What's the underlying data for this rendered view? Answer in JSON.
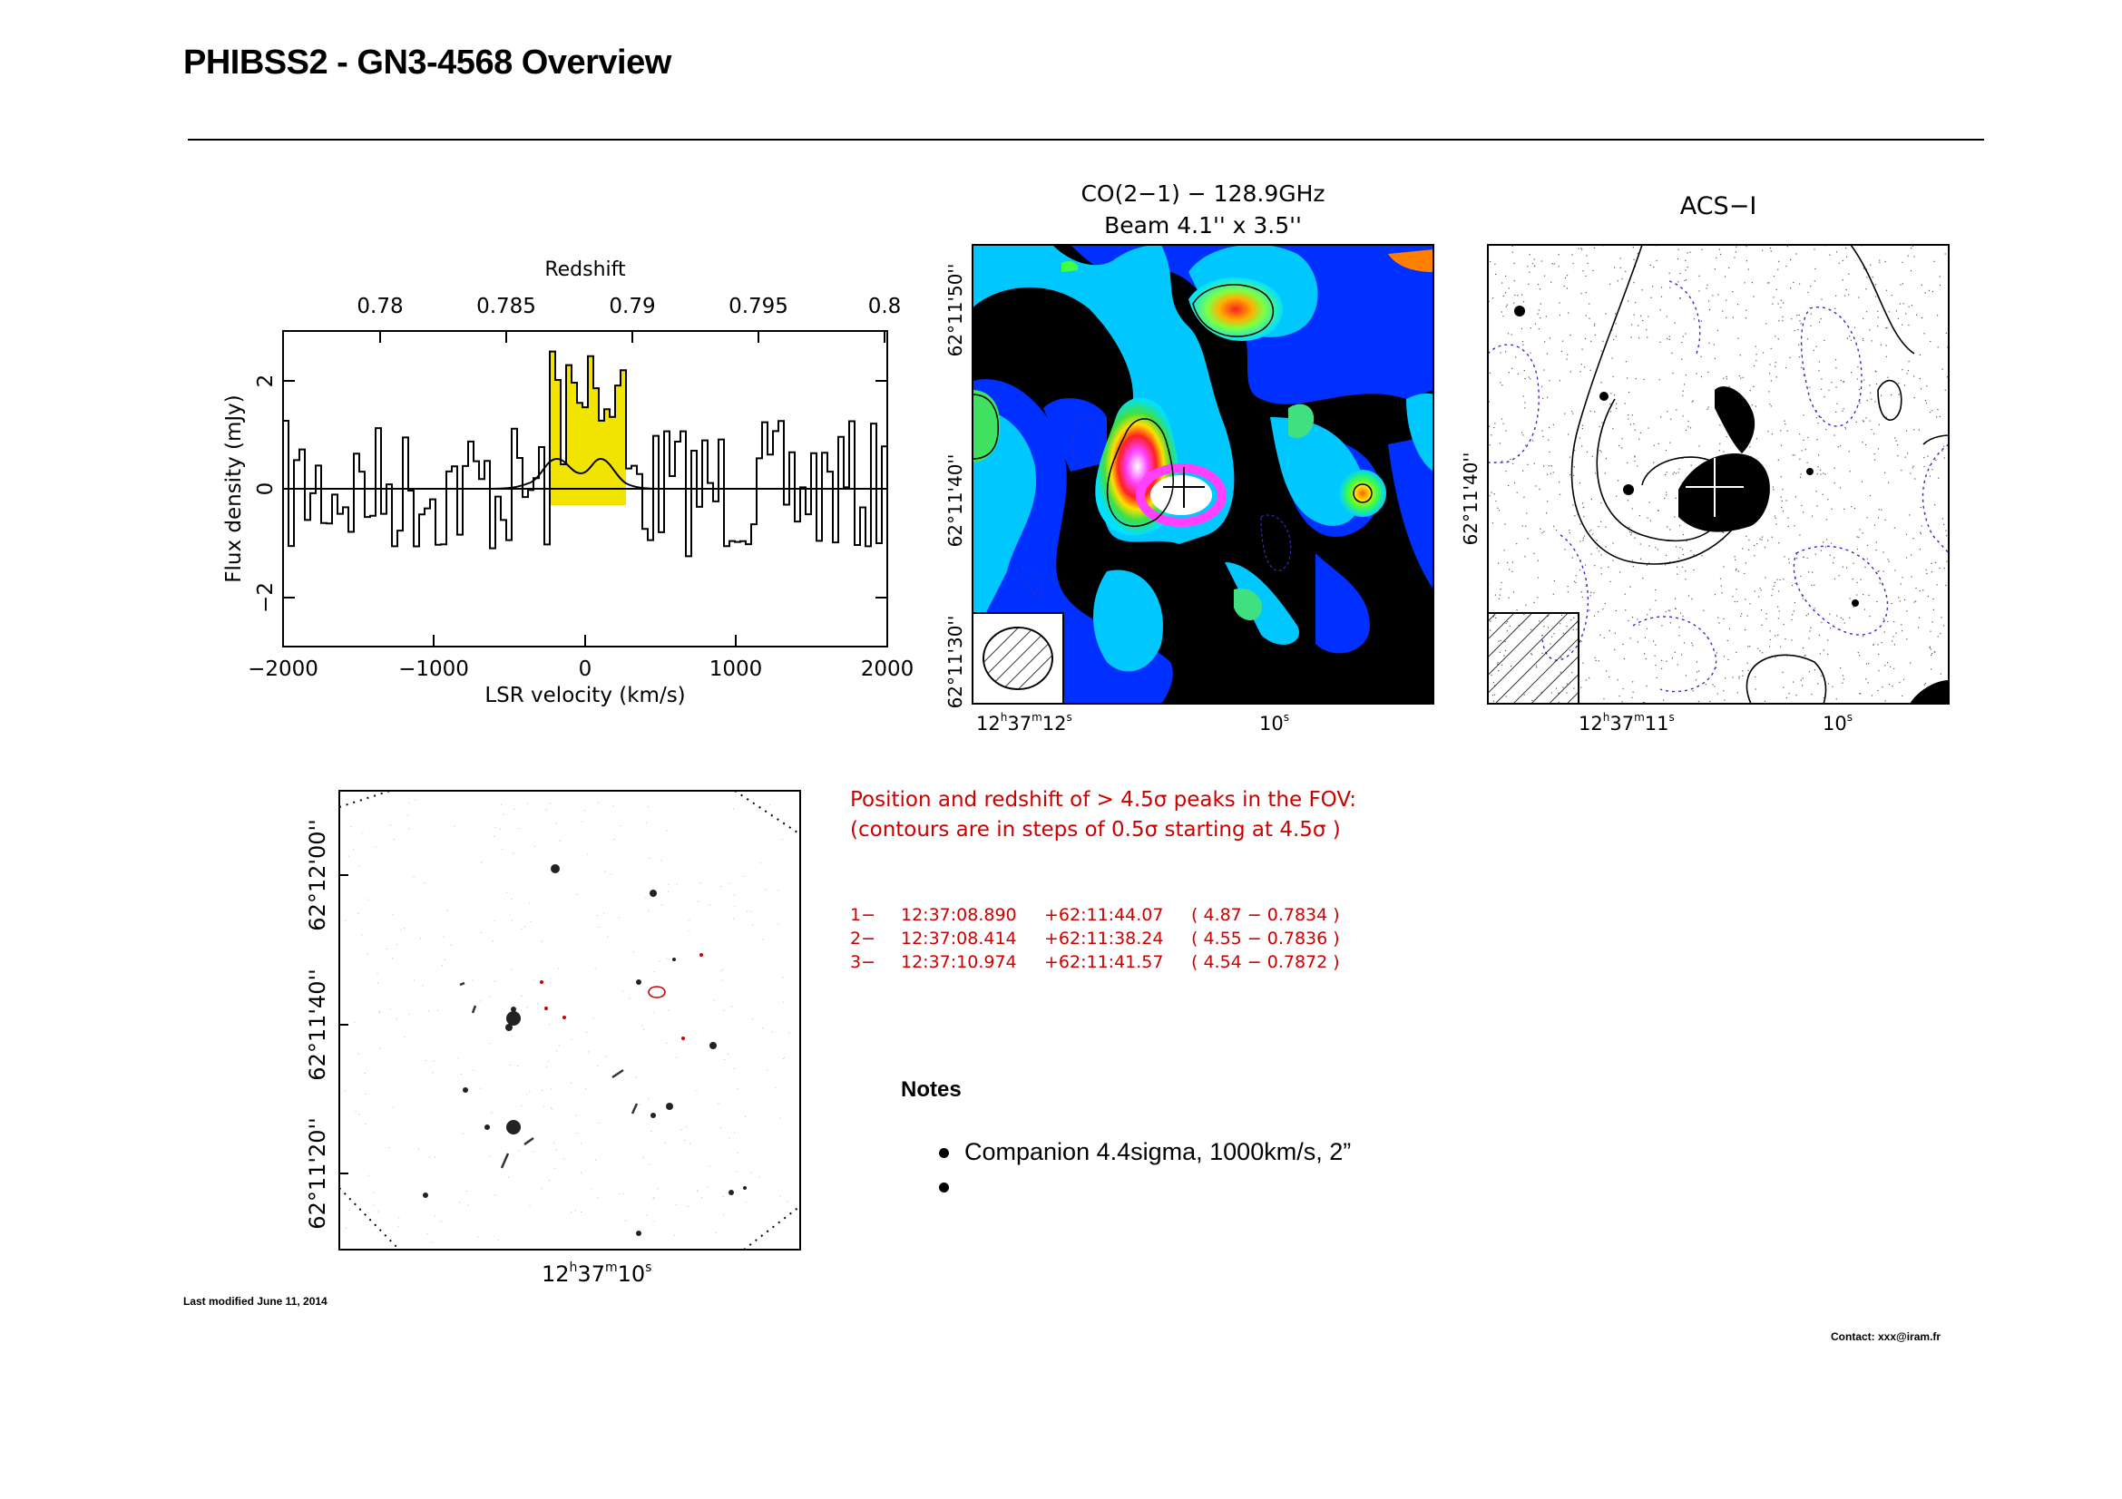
{
  "header": {
    "title": "PHIBSS2 - GN3-4568 Overview"
  },
  "spectrum": {
    "top_axis_label": "Redshift",
    "top_ticks": [
      "0.78",
      "0.785",
      "0.79",
      "0.795",
      "0.8"
    ],
    "x_ticks": [
      "−2000",
      "−1000",
      "0",
      "1000",
      "2000"
    ],
    "y_ticks": [
      "−2",
      "0",
      "2"
    ],
    "xlabel": "LSR velocity (km/s)",
    "ylabel": "Flux density (mJy)"
  },
  "co_map": {
    "title_line1": "CO(2−1) − 128.9GHz",
    "title_line2": "Beam 4.1'' x 3.5''",
    "dec_ticks": [
      "62°11'50''",
      "62°11'40''",
      "62°11'30''"
    ],
    "ra_tick_1_h": "12",
    "ra_tick_1_m": "37",
    "ra_tick_1_s": "12",
    "ra_tick_2_s": "10"
  },
  "acs_map": {
    "title": "ACS−I",
    "dec_tick": "62°11'40''",
    "ra_tick_1_h": "12",
    "ra_tick_1_m": "37",
    "ra_tick_1_s": "11",
    "ra_tick_2_s": "10"
  },
  "fov_map": {
    "dec_ticks": [
      "62°12'00''",
      "62°11'40''",
      "62°11'20''"
    ],
    "ra_tick_h": "12",
    "ra_tick_m": "37",
    "ra_tick_s": "10"
  },
  "peaks": {
    "intro_line1": "Position and redshift of > 4.5σ peaks in the FOV:",
    "intro_line2": "(contours are in steps of 0.5σ starting at 4.5σ )",
    "rows": [
      {
        "id": "1−",
        "ra": "12:37:08.890",
        "dec": "+62:11:44.07",
        "value": "( 4.87 − 0.7834 )"
      },
      {
        "id": "2−",
        "ra": "12:37:08.414",
        "dec": "+62:11:38.24",
        "value": "( 4.55 − 0.7836 )"
      },
      {
        "id": "3−",
        "ra": "12:37:10.974",
        "dec": "+62:11:41.57",
        "value": "( 4.54 − 0.7872 )"
      }
    ]
  },
  "notes": {
    "heading": "Notes",
    "items": [
      "Companion 4.4sigma, 1000km/s,  2”",
      ""
    ]
  },
  "footer": {
    "last_modified": "Last modified June 11, 2014",
    "contact": "Contact: xxx@iram.fr"
  },
  "colors": {
    "line_highlight": "#f0e400",
    "peak_text": "#cc0000",
    "negative_contour": "#4040c0"
  }
}
